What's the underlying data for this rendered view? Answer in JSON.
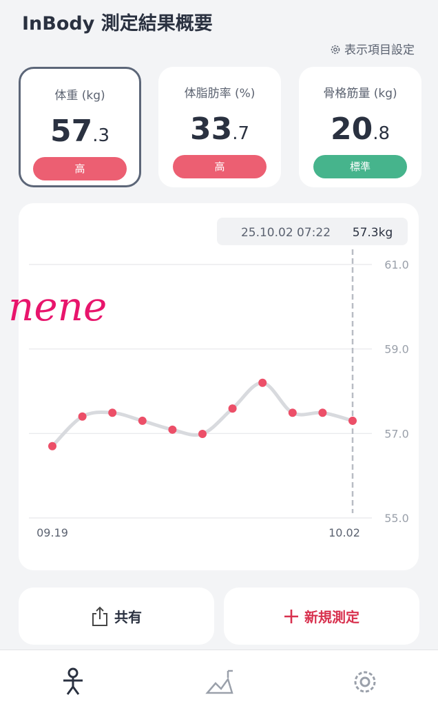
{
  "header": {
    "title": "InBody 測定結果概要",
    "settings_link": "表示項目設定"
  },
  "cards": [
    {
      "label": "体重 (kg)",
      "value_main": "57",
      "value_decimal": ".3",
      "status": "高"
    },
    {
      "label": "体脂肪率 (%)",
      "value_main": "33",
      "value_decimal": ".7",
      "status": "高"
    },
    {
      "label": "骨格筋量 (kg)",
      "value_main": "20",
      "value_decimal": ".8",
      "status": "標準"
    }
  ],
  "chart_data": {
    "type": "line",
    "categories": [
      "09.19",
      null,
      null,
      null,
      null,
      null,
      null,
      null,
      null,
      null,
      "10.02"
    ],
    "values": [
      56.7,
      57.4,
      57.49,
      57.3,
      57.09,
      56.99,
      57.59,
      58.2,
      57.49,
      57.49,
      57.3
    ],
    "color": "#ec4f68",
    "line_color": "#d8dade",
    "ylim": [
      55,
      61
    ],
    "yticks": [
      {
        "value": 55,
        "label": "55.0"
      },
      {
        "value": 57,
        "label": "57.0"
      },
      {
        "value": 59,
        "label": "59.0"
      },
      {
        "value": 61,
        "label": "61.0"
      }
    ],
    "grid": true,
    "tooltip": {
      "date": "25.10.02 07:22",
      "value": "57.3kg"
    }
  },
  "annotation": "nene",
  "buttons": {
    "share": "共有",
    "new": "新規測定"
  }
}
